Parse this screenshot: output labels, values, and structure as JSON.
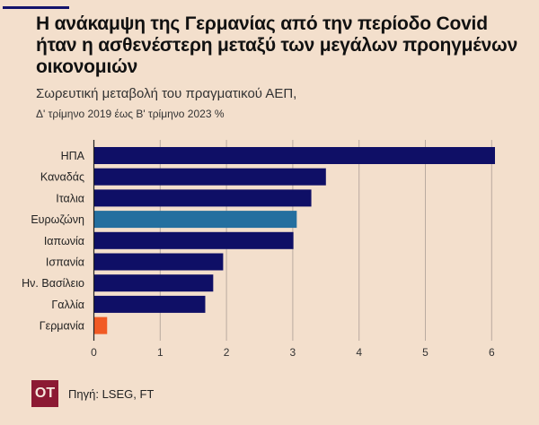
{
  "header": {
    "title": "Η ανάκαμψη της Γερμανίας από την περίοδο Covid ήταν η ασθενέστερη μεταξύ των μεγάλων προηγμένων οικονομιών",
    "subtitle_line1": "Σωρευτική μεταβολή του πραγματικού ΑΕΠ,",
    "subtitle_line2": "Δ' τρίμηνο 2019 έως Β' τρίμηνο 2023 %"
  },
  "footer": {
    "logo": "OT",
    "source": "Πηγή: LSEG, FT"
  },
  "colors": {
    "default": "#0f0f66",
    "highlight_eurozone": "#246f9f",
    "highlight_germany": "#f15a24",
    "grid": "#b9aaa0",
    "accent_line": "#13136b",
    "logo_bg": "#8c1a33"
  },
  "chart_data": {
    "type": "bar",
    "orientation": "horizontal",
    "title": "Η ανάκαμψη της Γερμανίας από την περίοδο Covid ήταν η ασθενέστερη μεταξύ των μεγάλων προηγμένων οικονομιών",
    "subtitle": "Σωρευτική μεταβολή του πραγματικού ΑΕΠ, Δ' τρίμηνο 2019 έως Β' τρίμηνο 2023 %",
    "categories": [
      "ΗΠΑ",
      "Καναδάς",
      "Ιταλια",
      "Ευρωζώνη",
      "Ιαπωνία",
      "Ισπανία",
      "Ην. Βασίλειο",
      "Γαλλία",
      "Γερμανία"
    ],
    "values": [
      6.05,
      3.5,
      3.28,
      3.06,
      3.01,
      1.95,
      1.8,
      1.68,
      0.2
    ],
    "bar_colors": [
      "default",
      "default",
      "default",
      "highlight_eurozone",
      "default",
      "default",
      "default",
      "default",
      "highlight_germany"
    ],
    "xlim": [
      0,
      6.5
    ],
    "xticks": [
      0,
      1,
      2,
      3,
      4,
      5,
      6
    ],
    "xlabel": "",
    "ylabel": "",
    "grid": "vertical",
    "legend": "none"
  }
}
